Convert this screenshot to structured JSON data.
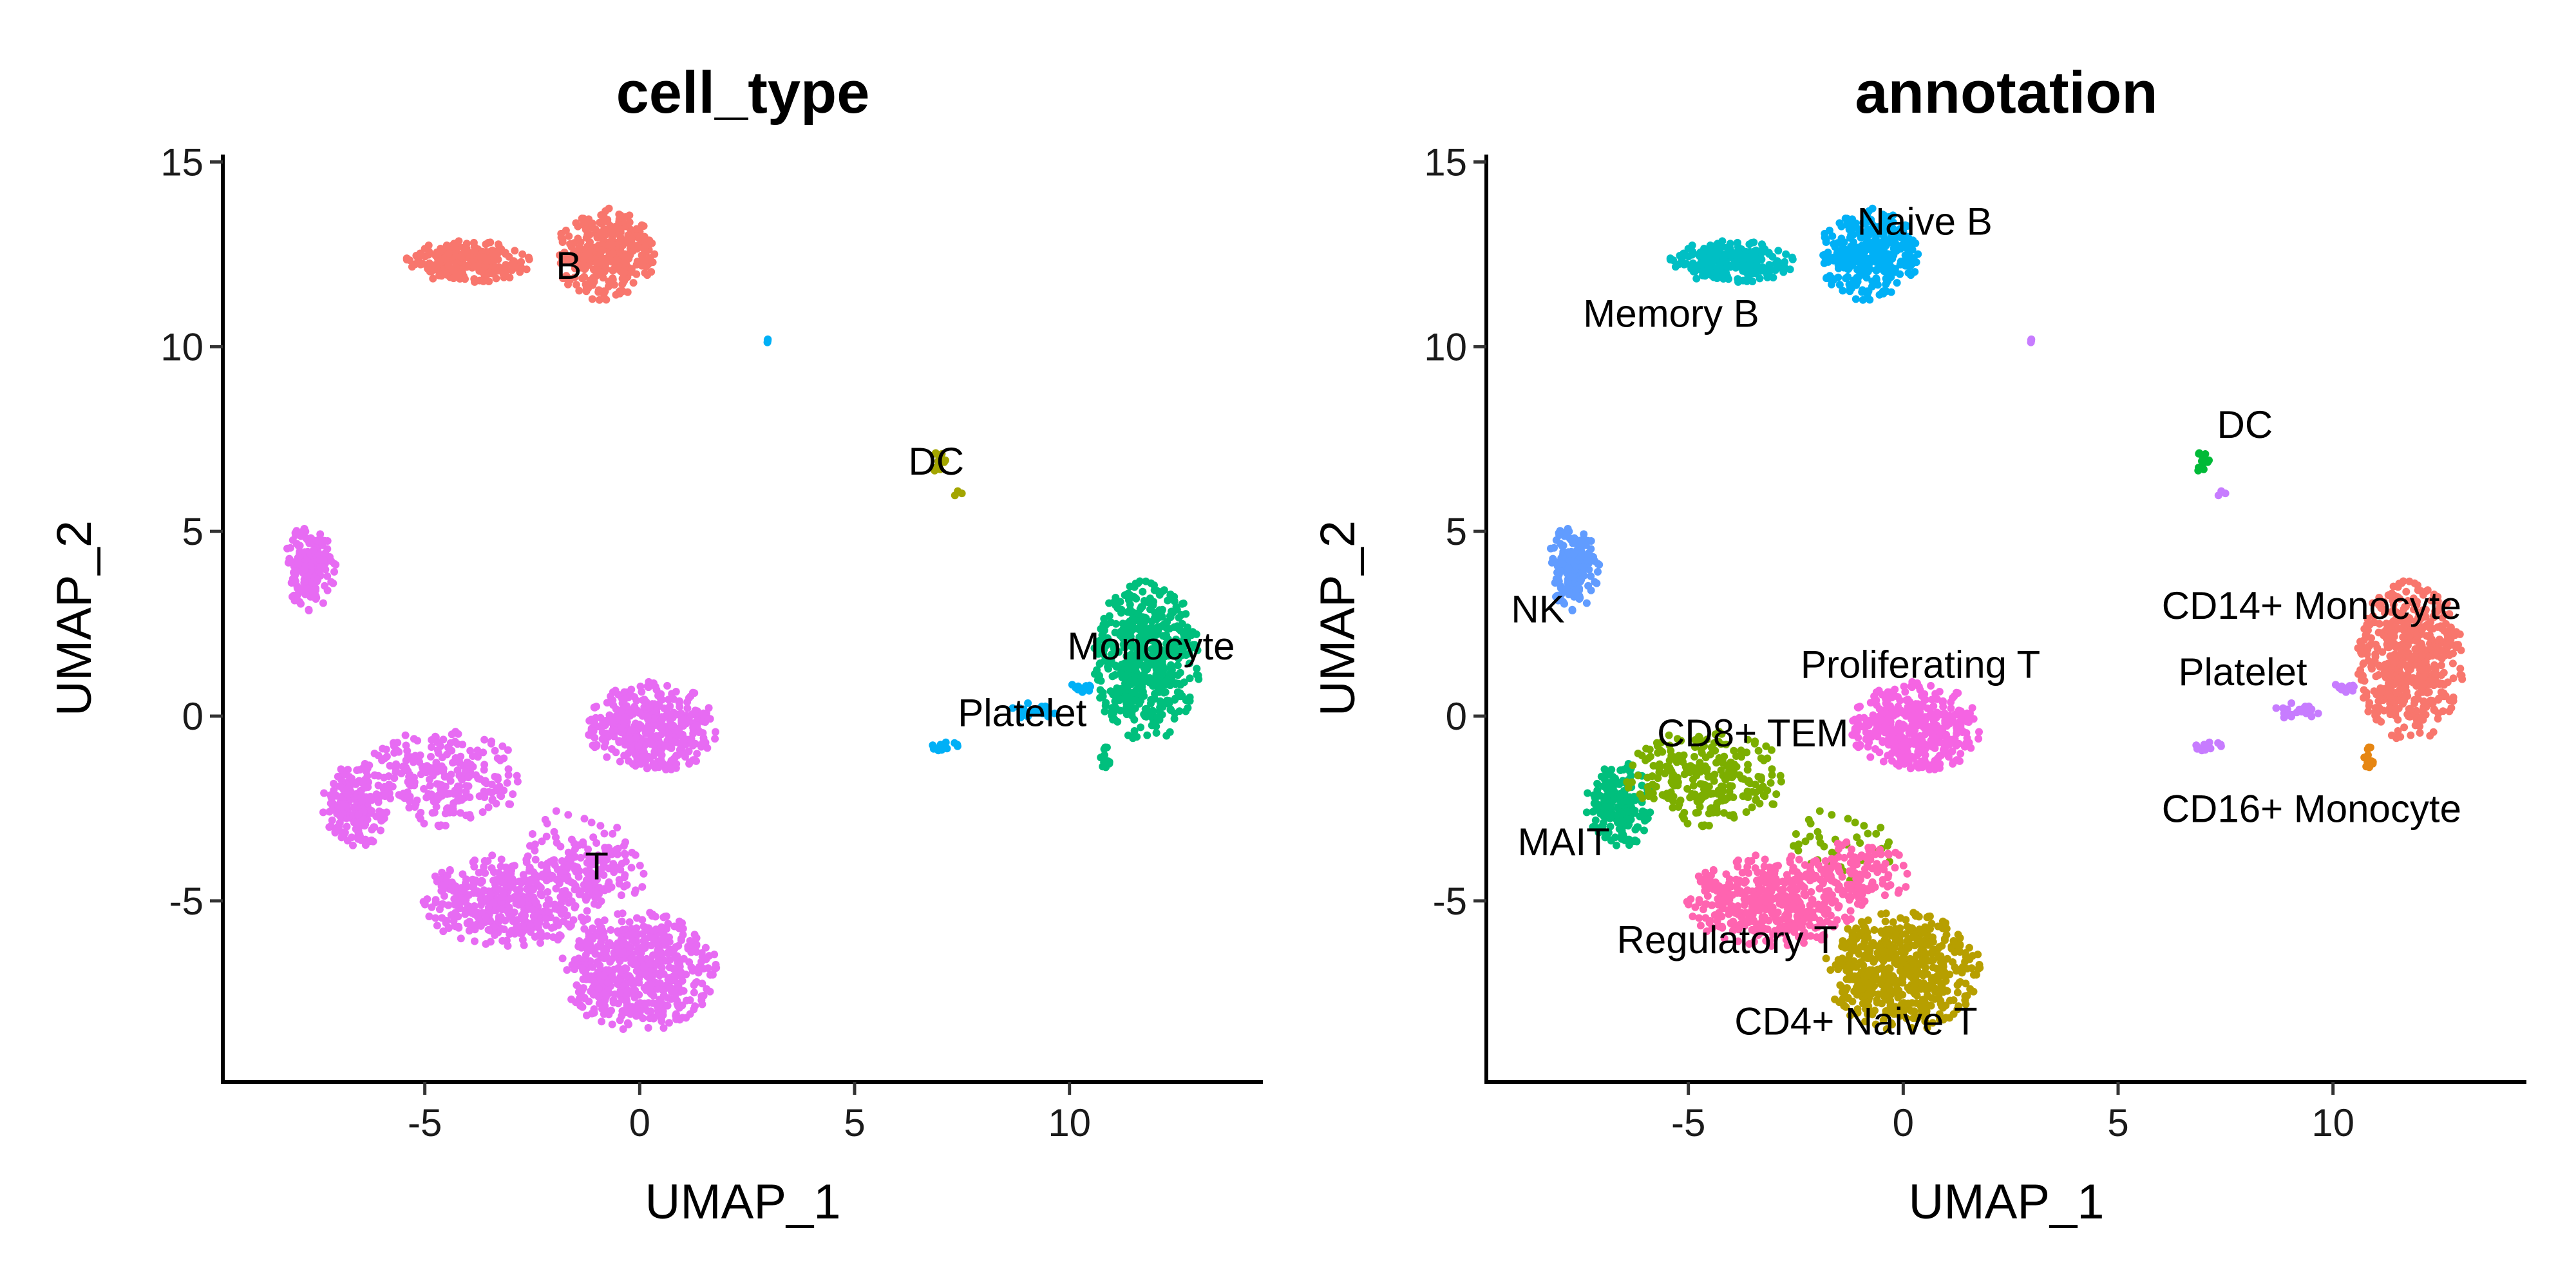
{
  "chart_data": [
    {
      "type": "scatter",
      "title": "cell_type",
      "xlabel": "UMAP_1",
      "ylabel": "UMAP_2",
      "xlim": [
        -9.7,
        14.5
      ],
      "ylim": [
        -9.9,
        15.2
      ],
      "xticks": [
        -5,
        0,
        5,
        10
      ],
      "yticks": [
        -5,
        0,
        5,
        10,
        15
      ],
      "xtick_labels": [
        "-5",
        "0",
        "5",
        "10"
      ],
      "ytick_labels": [
        "-5",
        "0",
        "5",
        "10",
        "15"
      ],
      "grid": false,
      "legend": "none",
      "group_by": "cell_type",
      "clusters": [
        {
          "name": "B",
          "color": "#F8766D",
          "label_pos": [
            -1.65,
            12.2
          ]
        },
        {
          "name": "DC",
          "color": "#A3A500",
          "label_pos": [
            6.9,
            6.9
          ]
        },
        {
          "name": "Monocyte",
          "color": "#00BF7D",
          "label_pos": [
            11.9,
            1.9
          ]
        },
        {
          "name": "Platelet",
          "color": "#00B0F6",
          "label_pos": [
            8.9,
            0.1
          ]
        },
        {
          "name": "T",
          "color": "#E76BF3",
          "label_pos": [
            -1.0,
            -4.05
          ]
        }
      ]
    },
    {
      "type": "scatter",
      "title": "annotation",
      "xlabel": "UMAP_1",
      "ylabel": "UMAP_2",
      "xlim": [
        -9.7,
        14.5
      ],
      "ylim": [
        -9.9,
        15.2
      ],
      "xticks": [
        -5,
        0,
        5,
        10
      ],
      "yticks": [
        -5,
        0,
        5,
        10,
        15
      ],
      "xtick_labels": [
        "-5",
        "0",
        "5",
        "10"
      ],
      "ytick_labels": [
        "-5",
        "0",
        "5",
        "10",
        "15"
      ],
      "grid": false,
      "legend": "none",
      "group_by": "annotation",
      "clusters": [
        {
          "name": "Naive B",
          "color": "#00B0F6",
          "label_pos": [
            0.5,
            13.4
          ]
        },
        {
          "name": "Memory B",
          "color": "#00BFC4",
          "label_pos": [
            -5.4,
            10.9
          ]
        },
        {
          "name": "DC",
          "color": "#00BA38",
          "label_pos": [
            7.95,
            7.9
          ]
        },
        {
          "name": "NK",
          "color": "#619CFF",
          "label_pos": [
            -8.5,
            2.9
          ]
        },
        {
          "name": "CD14+ Monocyte",
          "color": "#F8766D",
          "label_pos": [
            9.5,
            3.0
          ]
        },
        {
          "name": "Platelet",
          "color": "#C77CFF",
          "label_pos": [
            7.9,
            1.2
          ]
        },
        {
          "name": "Proliferating T",
          "color": "#F564E3",
          "label_pos": [
            0.4,
            1.4
          ]
        },
        {
          "name": "CD8+ TEM",
          "color": "#7CAE00",
          "label_pos": [
            -3.5,
            -0.45
          ]
        },
        {
          "name": "CD16+ Monocyte",
          "color": "#E68613",
          "label_pos": [
            9.5,
            -2.5
          ]
        },
        {
          "name": "MAIT",
          "color": "#00BF7D",
          "label_pos": [
            -7.9,
            -3.4
          ]
        },
        {
          "name": "Regulatory T",
          "color": "#FF64B0",
          "label_pos": [
            -4.1,
            -6.05
          ]
        },
        {
          "name": "CD4+ Naive T",
          "color": "#B79F00",
          "label_pos": [
            -1.1,
            -8.25
          ]
        }
      ]
    }
  ],
  "regions": [
    {
      "cell_type": "B",
      "annotation": "Memory B",
      "center": [
        -4.0,
        12.3
      ],
      "spread": [
        1.4,
        0.55
      ],
      "cells": 260
    },
    {
      "cell_type": "B",
      "annotation": "Naive B",
      "center": [
        -0.8,
        12.5
      ],
      "spread": [
        1.1,
        1.2
      ],
      "cells": 330
    },
    {
      "cell_type": "Platelet",
      "annotation": "Platelet",
      "center": [
        3.0,
        10.15
      ],
      "spread": [
        0.1,
        0.08
      ],
      "cells": 4
    },
    {
      "cell_type": "DC",
      "annotation": "DC",
      "center": [
        6.95,
        6.9
      ],
      "spread": [
        0.2,
        0.45
      ],
      "cells": 14
    },
    {
      "cell_type": "DC",
      "annotation": "Platelet",
      "center": [
        7.4,
        6.0
      ],
      "spread": [
        0.1,
        0.1
      ],
      "cells": 3
    },
    {
      "cell_type": "T",
      "annotation": "NK",
      "center": [
        -7.7,
        4.0
      ],
      "spread": [
        0.6,
        1.1
      ],
      "cells": 170
    },
    {
      "cell_type": "T",
      "annotation": "MAIT",
      "center": [
        -6.6,
        -2.4
      ],
      "spread": [
        0.75,
        1.1
      ],
      "cells": 200
    },
    {
      "cell_type": "T",
      "annotation": "CD8+ TEM",
      "center": [
        -4.6,
        -1.7
      ],
      "spread": [
        1.8,
        1.3
      ],
      "cells": 260
    },
    {
      "cell_type": "T",
      "annotation": "CD8+ TEM",
      "center": [
        -1.5,
        -3.5
      ],
      "spread": [
        1.3,
        1.0
      ],
      "cells": 40
    },
    {
      "cell_type": "T",
      "annotation": "Proliferating T",
      "center": [
        0.3,
        -0.3
      ],
      "spread": [
        1.45,
        1.2
      ],
      "cells": 420
    },
    {
      "cell_type": "T",
      "annotation": "Regulatory T",
      "center": [
        -3.0,
        -5.0
      ],
      "spread": [
        2.0,
        1.2
      ],
      "cells": 450
    },
    {
      "cell_type": "T",
      "annotation": "Regulatory T",
      "center": [
        -1.0,
        -4.2
      ],
      "spread": [
        1.2,
        0.8
      ],
      "cells": 110
    },
    {
      "cell_type": "T",
      "annotation": "CD4+ Naive T",
      "center": [
        0.0,
        -6.9
      ],
      "spread": [
        1.75,
        1.55
      ],
      "cells": 560
    },
    {
      "cell_type": "Monocyte",
      "annotation": "CD14+ Monocyte",
      "center": [
        11.8,
        1.5
      ],
      "spread": [
        1.2,
        2.1
      ],
      "cells": 560
    },
    {
      "cell_type": "Monocyte",
      "annotation": "CD16+ Monocyte",
      "center": [
        10.85,
        -1.1
      ],
      "spread": [
        0.15,
        0.45
      ],
      "cells": 14
    },
    {
      "cell_type": "Platelet",
      "annotation": "Platelet",
      "center": [
        7.1,
        -0.85
      ],
      "spread": [
        0.35,
        0.15
      ],
      "cells": 14
    },
    {
      "cell_type": "Platelet",
      "annotation": "Platelet",
      "center": [
        9.2,
        0.1
      ],
      "spread": [
        0.7,
        0.25
      ],
      "cells": 22
    },
    {
      "cell_type": "Platelet",
      "annotation": "Platelet",
      "center": [
        10.3,
        0.75
      ],
      "spread": [
        0.3,
        0.2
      ],
      "cells": 14
    }
  ]
}
